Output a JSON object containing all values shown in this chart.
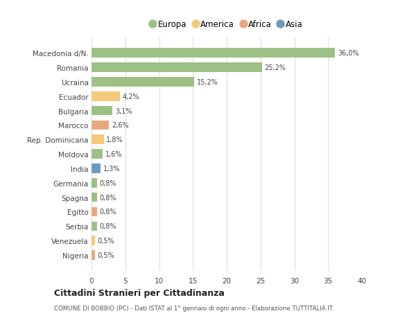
{
  "categories": [
    "Nigeria",
    "Venezuela",
    "Serbia",
    "Egitto",
    "Spagna",
    "Germania",
    "India",
    "Moldova",
    "Rep. Dominicana",
    "Marocco",
    "Bulgaria",
    "Ecuador",
    "Ucraina",
    "Romania",
    "Macedonia d/N."
  ],
  "values": [
    0.5,
    0.5,
    0.8,
    0.8,
    0.8,
    0.8,
    1.3,
    1.6,
    1.8,
    2.6,
    3.1,
    4.2,
    15.2,
    25.2,
    36.0
  ],
  "colors": [
    "#E8A87C",
    "#F5C97A",
    "#9DC185",
    "#E8A87C",
    "#9DC185",
    "#9DC185",
    "#6B9BC3",
    "#9DC185",
    "#F5C97A",
    "#E8A87C",
    "#9DC185",
    "#F5C97A",
    "#9DC185",
    "#9DC185",
    "#9DC185"
  ],
  "labels": [
    "0,5%",
    "0,5%",
    "0,8%",
    "0,8%",
    "0,8%",
    "0,8%",
    "1,3%",
    "1,6%",
    "1,8%",
    "2,6%",
    "3,1%",
    "4,2%",
    "15,2%",
    "25,2%",
    "36,0%"
  ],
  "legend_labels": [
    "Europa",
    "America",
    "Africa",
    "Asia"
  ],
  "legend_colors": [
    "#9DC185",
    "#F5C97A",
    "#E8A87C",
    "#6B9BC3"
  ],
  "title": "Cittadini Stranieri per Cittadinanza",
  "subtitle": "COMUNE DI BOBBIO (PC) - Dati ISTAT al 1° gennaio di ogni anno - Elaborazione TUTTITALIA.IT",
  "xlim": [
    0,
    40
  ],
  "xticks": [
    0,
    5,
    10,
    15,
    20,
    25,
    30,
    35,
    40
  ],
  "background_color": "#FFFFFF",
  "grid_color": "#DDDDDD",
  "bar_height": 0.65
}
